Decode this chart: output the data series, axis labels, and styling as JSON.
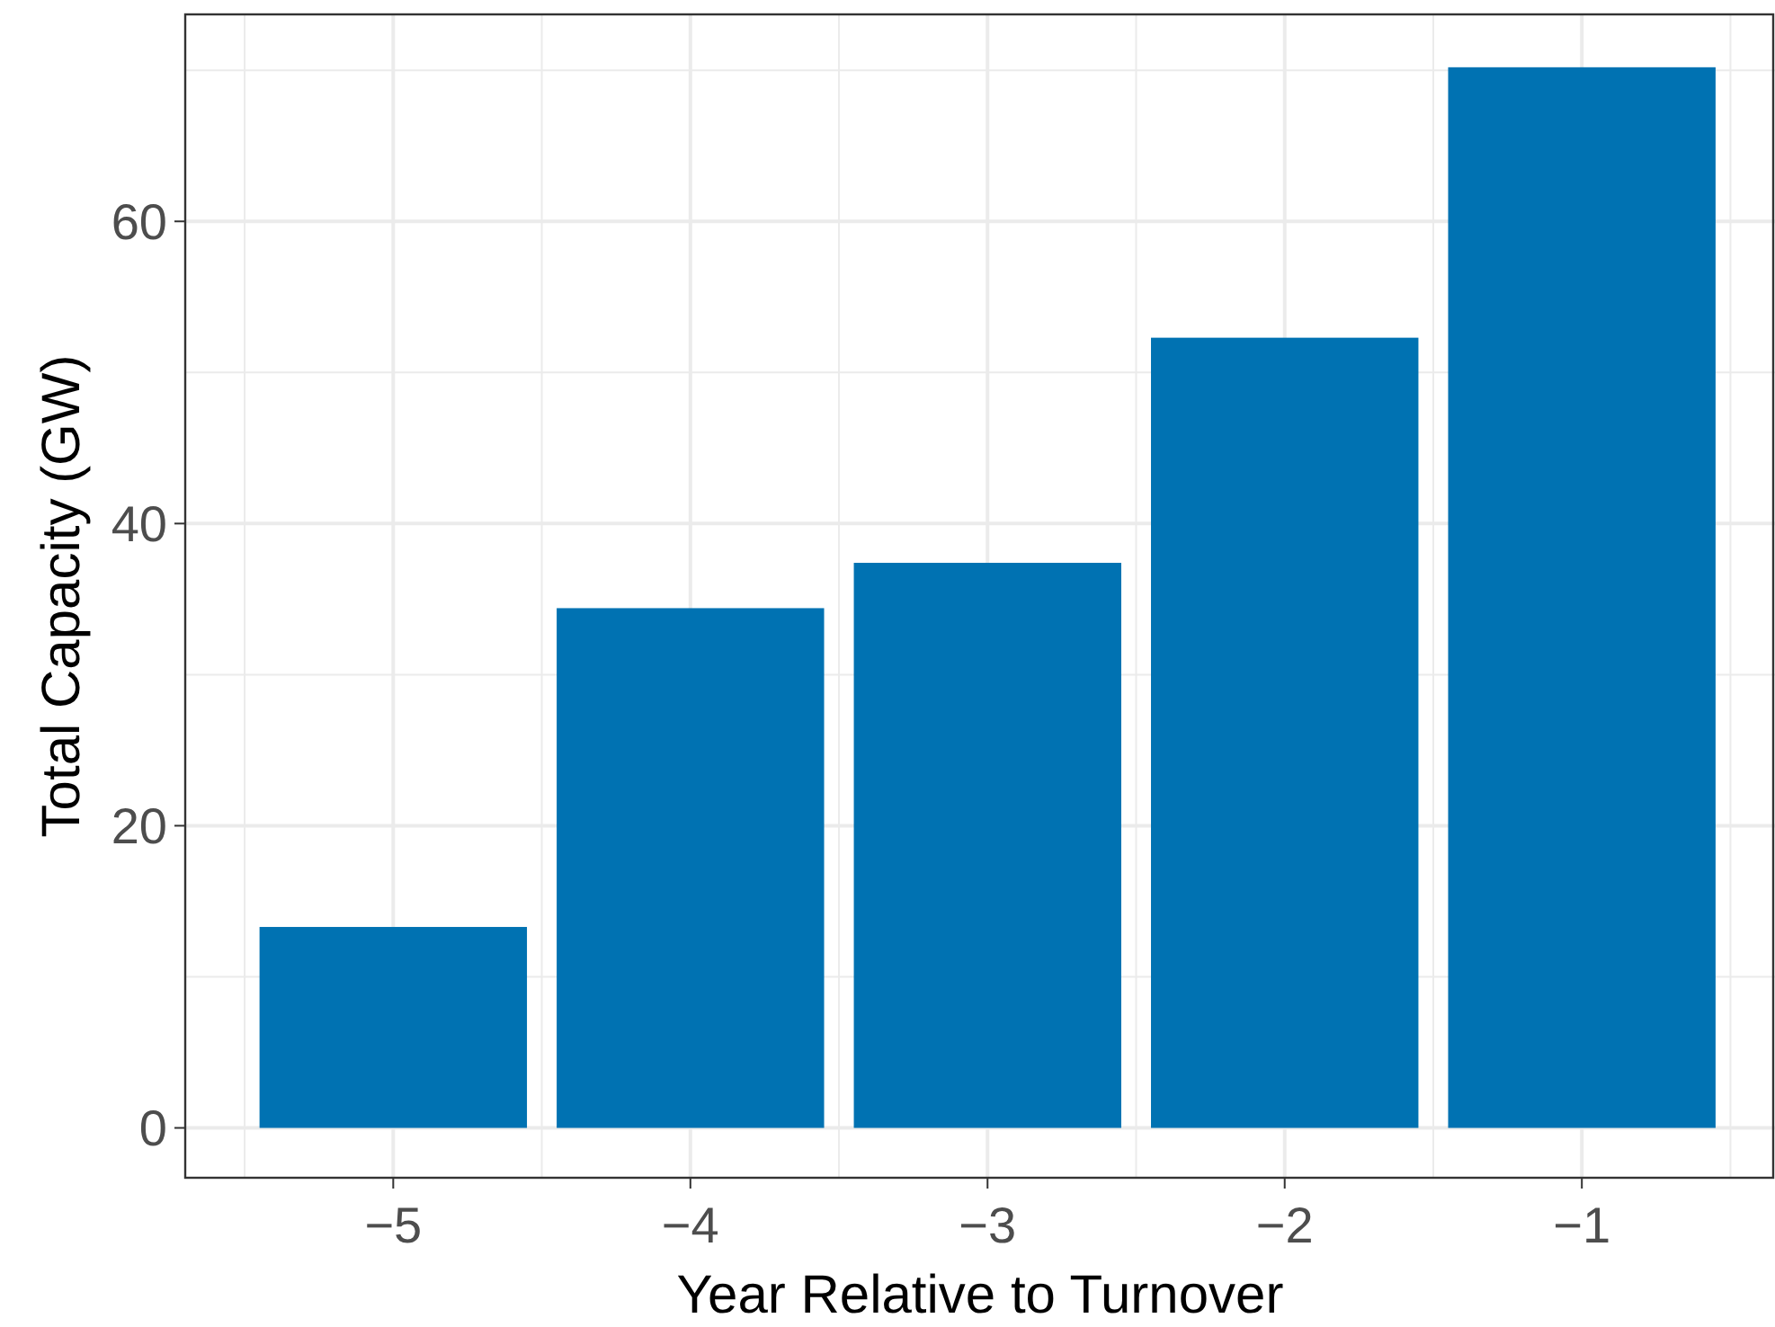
{
  "chart_data": {
    "type": "bar",
    "xlabel": "Year Relative to Turnover",
    "ylabel": "Total Capacity (GW)",
    "x": [
      -5,
      -4,
      -3,
      -2,
      -1
    ],
    "values": [
      13.3,
      34.4,
      37.4,
      52.3,
      70.2
    ],
    "color": "#0072b2",
    "xlim": [
      -5.7,
      -0.35
    ],
    "xticks": [
      {
        "value": -5,
        "label": "−5"
      },
      {
        "value": -4,
        "label": "−4"
      },
      {
        "value": -3,
        "label": "−3"
      },
      {
        "value": -2,
        "label": "−2"
      },
      {
        "value": -1,
        "label": "−1"
      }
    ],
    "ylim": [
      -3.3,
      73.7
    ],
    "yticks": [
      0,
      20,
      40,
      60
    ],
    "grid": true
  }
}
